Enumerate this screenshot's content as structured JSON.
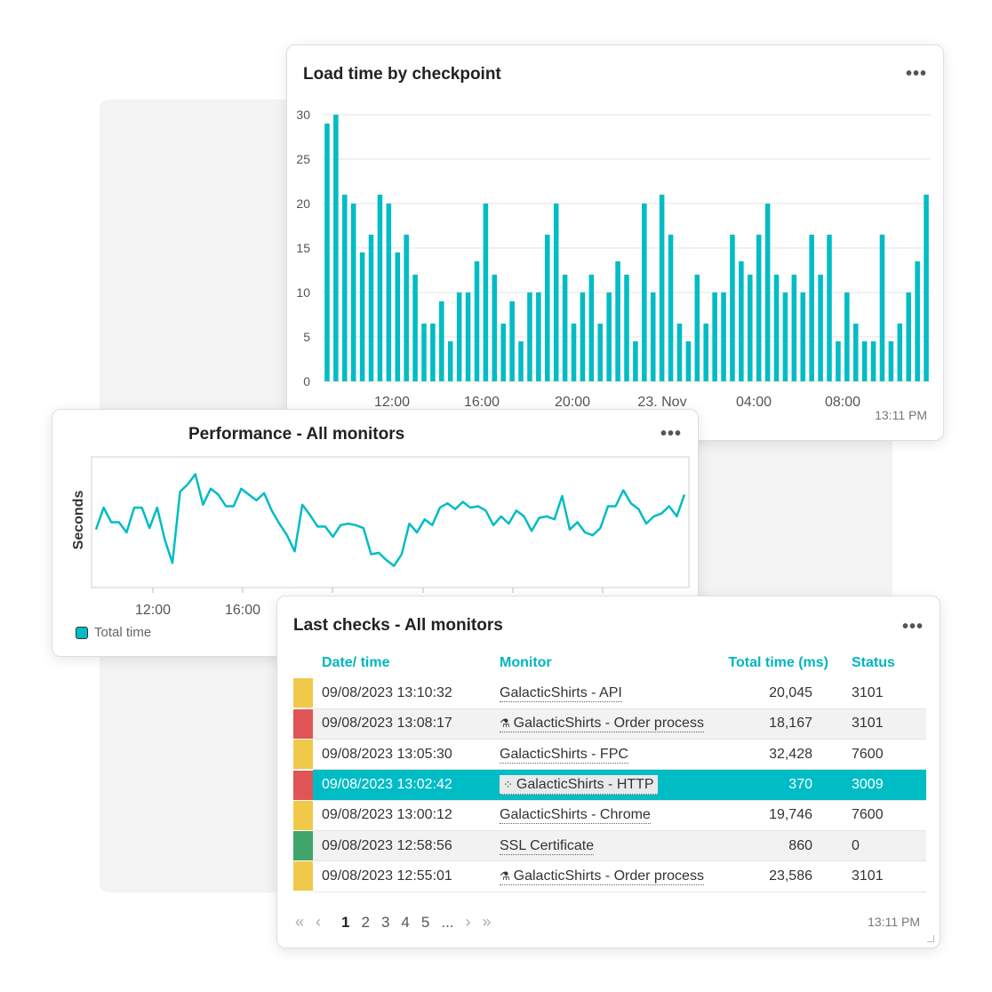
{
  "load_chart": {
    "title": "Load time by checkpoint",
    "menu_label": "•••",
    "timestamp": "13:11 PM",
    "color": "#00bcc5"
  },
  "perf_chart": {
    "title": "Performance - All monitors",
    "menu_label": "•••",
    "legend_label": "Total time",
    "color": "#00bcc5"
  },
  "checks": {
    "title": "Last checks - All monitors",
    "menu_label": "•••",
    "timestamp": "13:11 PM",
    "columns": [
      "Date/ time",
      "Monitor",
      "Total time (ms)",
      "Status"
    ],
    "rows": [
      {
        "status_color": "#f0c94a",
        "datetime": "09/08/2023 13:10:32",
        "icon": "",
        "monitor": "GalacticShirts - API",
        "total": "20,045",
        "status": "3101"
      },
      {
        "status_color": "#e05555",
        "datetime": "09/08/2023 13:08:17",
        "icon": "flask-icon",
        "monitor": "GalacticShirts - Order process",
        "total": "18,167",
        "status": "3101"
      },
      {
        "status_color": "#f0c94a",
        "datetime": "09/08/2023 13:05:30",
        "icon": "",
        "monitor": "GalacticShirts - FPC",
        "total": "32,428",
        "status": "7600"
      },
      {
        "status_color": "#e05555",
        "datetime": "09/08/2023 13:02:42",
        "icon": "grid-dots-icon",
        "monitor": "GalacticShirts - HTTP",
        "total": "370",
        "status": "3009",
        "selected": true
      },
      {
        "status_color": "#f0c94a",
        "datetime": "09/08/2023 13:00:12",
        "icon": "",
        "monitor": "GalacticShirts - Chrome",
        "total": "19,746",
        "status": "7600"
      },
      {
        "status_color": "#3fa56a",
        "datetime": "09/08/2023 12:58:56",
        "icon": "",
        "monitor": "SSL Certificate",
        "total": "860",
        "status": "0"
      },
      {
        "status_color": "#f0c94a",
        "datetime": "09/08/2023 12:55:01",
        "icon": "flask-icon",
        "monitor": "GalacticShirts - Order process",
        "total": "23,586",
        "status": "3101"
      }
    ],
    "pager": {
      "first": "«",
      "prev": "‹",
      "pages": [
        "1",
        "2",
        "3",
        "4",
        "5",
        "..."
      ],
      "current": "1",
      "next": "›",
      "last": "»"
    }
  },
  "chart_data": [
    {
      "type": "bar",
      "title": "Load time by checkpoint",
      "xlabel": "",
      "ylabel": "",
      "ylim": [
        0,
        30
      ],
      "yticks": [
        "0",
        "5",
        "10",
        "15",
        "20",
        "25",
        "30"
      ],
      "xticks": [
        "12:00",
        "16:00",
        "20:00",
        "23. Nov",
        "04:00",
        "08:00"
      ],
      "values": [
        29,
        30,
        21,
        20,
        14.5,
        16.5,
        21,
        20,
        14.5,
        16.5,
        12,
        6.5,
        6.5,
        9,
        4.5,
        10,
        10,
        13.5,
        20,
        12,
        6.5,
        9,
        4.5,
        10,
        10,
        16.5,
        20,
        12,
        6.5,
        10,
        12,
        6.5,
        10,
        13.5,
        12,
        4.5,
        20,
        10,
        21,
        16.5,
        6.5,
        4.5,
        12,
        6.5,
        10,
        10,
        16.5,
        13.5,
        12,
        16.5,
        20,
        12,
        10,
        12,
        10,
        16.5,
        12,
        16.5,
        4.5,
        10,
        6.5,
        4.5,
        4.5,
        16.5,
        4.5,
        6.5,
        10,
        13.5,
        21
      ],
      "grid": true
    },
    {
      "type": "line",
      "title": "Performance - All monitors",
      "xlabel": "",
      "ylabel": "Seconds",
      "xticks": [
        "12:00",
        "16:00"
      ],
      "series": [
        {
          "name": "Total time",
          "values": [
            4.5,
            6,
            5,
            5,
            4.3,
            6,
            6,
            4.6,
            6,
            3.8,
            2.2,
            7.1,
            7.6,
            8.3,
            6.2,
            7.3,
            6.9,
            6.1,
            6.1,
            7.3,
            6.9,
            6.5,
            7,
            5.8,
            4.9,
            4.1,
            3,
            6.2,
            5.5,
            4.7,
            4.7,
            4,
            4.8,
            4.9,
            4.8,
            4.6,
            2.8,
            2.9,
            2.4,
            2,
            2.8,
            4.9,
            4.3,
            5.2,
            4.8,
            6,
            6.3,
            5.9,
            6.4,
            6,
            6.1,
            5.8,
            4.8,
            5.4,
            4.9,
            5.8,
            5.4,
            4.4,
            5.3,
            5.4,
            5.2,
            6.8,
            4.5,
            5,
            4.3,
            4.1,
            4.6,
            6.1,
            6.1,
            7.2,
            6.3,
            5.9,
            4.9,
            5.4,
            5.6,
            6.1,
            5.4,
            6.9
          ]
        }
      ]
    }
  ]
}
